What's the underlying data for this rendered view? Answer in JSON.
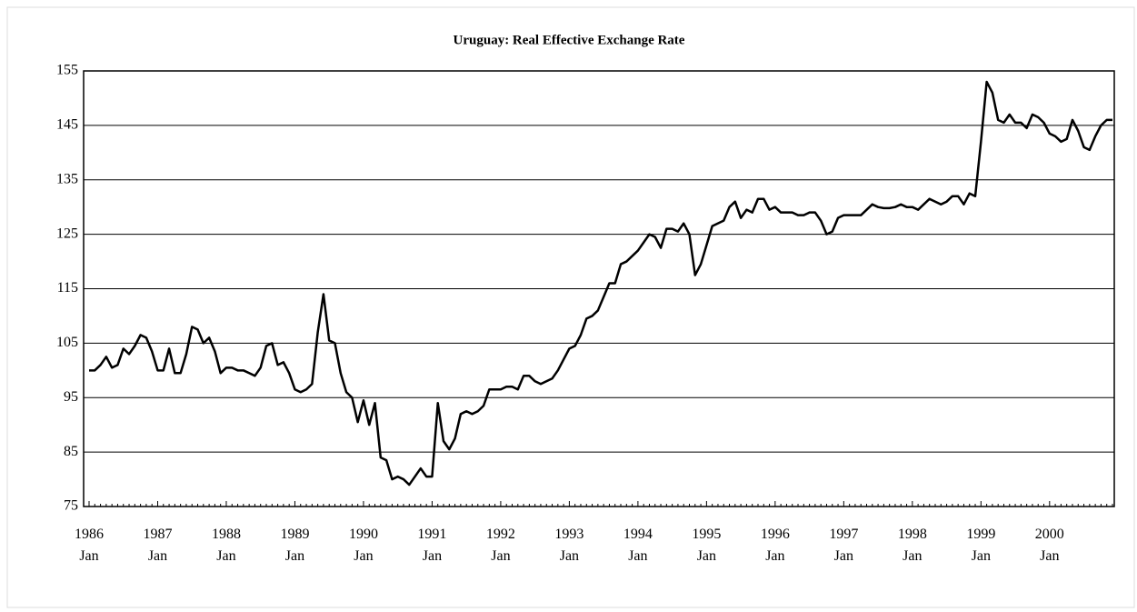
{
  "chart_data": {
    "type": "line",
    "title": "Uruguay: Real Effective Exchange  Rate",
    "categories": [
      "1986\nJan",
      null,
      null,
      null,
      null,
      null,
      null,
      null,
      null,
      null,
      null,
      null,
      "1987\nJan",
      null,
      null,
      null,
      null,
      null,
      null,
      null,
      null,
      null,
      null,
      null,
      "1988\nJan",
      null,
      null,
      null,
      null,
      null,
      null,
      null,
      null,
      null,
      null,
      null,
      "1989\nJan",
      null,
      null,
      null,
      null,
      null,
      null,
      null,
      null,
      null,
      null,
      null,
      "1990\nJan",
      null,
      null,
      null,
      null,
      null,
      null,
      null,
      null,
      null,
      null,
      null,
      "1991\nJan",
      null,
      null,
      null,
      null,
      null,
      null,
      null,
      null,
      null,
      null,
      null,
      "1992\nJan",
      null,
      null,
      null,
      null,
      null,
      null,
      null,
      null,
      null,
      null,
      null,
      "1993\nJan",
      null,
      null,
      null,
      null,
      null,
      null,
      null,
      null,
      null,
      null,
      null,
      "1994\nJan",
      null,
      null,
      null,
      null,
      null,
      null,
      null,
      null,
      null,
      null,
      null,
      "1995\nJan",
      null,
      null,
      null,
      null,
      null,
      null,
      null,
      null,
      null,
      null,
      null,
      "1996\nJan",
      null,
      null,
      null,
      null,
      null,
      null,
      null,
      null,
      null,
      null,
      null,
      "1997\nJan",
      null,
      null,
      null,
      null,
      null,
      null,
      null,
      null,
      null,
      null,
      null,
      "1998\nJan",
      null,
      null,
      null,
      null,
      null,
      null,
      null,
      null,
      null,
      null,
      null,
      "1999\nJan",
      null,
      null,
      null,
      null,
      null,
      null,
      null,
      null,
      null,
      null,
      null,
      "2000\nJan",
      null,
      null,
      null,
      null,
      null,
      null,
      null,
      null,
      null,
      null,
      null
    ],
    "series": [
      {
        "name": "Real Effective Exchange Rate",
        "color": "#000000",
        "values": [
          100,
          100,
          101,
          102.5,
          100.5,
          101,
          104,
          103,
          104.5,
          106.5,
          106,
          103.5,
          100,
          100,
          104,
          99.5,
          99.5,
          103,
          108,
          107.5,
          105,
          106,
          103.5,
          99.5,
          100.5,
          100.5,
          100,
          100,
          99.5,
          99,
          100.5,
          104.5,
          105,
          101,
          101.5,
          99.5,
          96.5,
          96,
          96.5,
          97.5,
          107,
          114,
          105.5,
          105,
          99.5,
          96,
          95,
          90.5,
          94.5,
          90,
          94,
          84,
          83.5,
          80,
          80.5,
          80,
          79,
          80.5,
          82,
          80.5,
          80.5,
          94,
          87,
          85.5,
          87.5,
          92,
          92.5,
          92,
          92.5,
          93.5,
          96.5,
          96.5,
          96.5,
          97,
          97,
          96.5,
          99,
          99,
          98,
          97.5,
          98,
          98.5,
          100,
          102,
          104,
          104.5,
          106.5,
          109.5,
          110,
          111,
          113.5,
          116,
          116,
          119.5,
          120,
          121,
          122,
          123.5,
          125,
          124.5,
          122.5,
          126,
          126,
          125.5,
          127,
          125,
          117.5,
          119.5,
          123,
          126.5,
          127,
          127.5,
          130,
          131,
          128,
          129.5,
          129,
          131.5,
          131.5,
          129.5,
          130,
          129,
          129,
          129,
          128.5,
          128.5,
          129,
          129,
          127.5,
          125,
          125.5,
          128,
          128.5,
          128.5,
          128.5,
          128.5,
          129.5,
          130.5,
          130,
          129.8,
          129.8,
          130,
          130.5,
          130,
          130,
          129.5,
          130.5,
          131.5,
          131,
          130.5,
          131,
          132,
          132,
          130.5,
          132.5,
          132,
          142,
          153,
          151,
          146,
          145.5,
          147,
          145.5,
          145.5,
          144.5,
          147,
          146.5,
          145.5,
          143.5,
          143,
          142,
          142.5,
          146,
          144,
          141,
          140.5,
          143,
          145,
          146,
          146
        ]
      }
    ],
    "ylim": [
      75,
      155
    ],
    "yticks": [
      75,
      85,
      95,
      105,
      115,
      125,
      135,
      145,
      155
    ],
    "grid": true
  }
}
